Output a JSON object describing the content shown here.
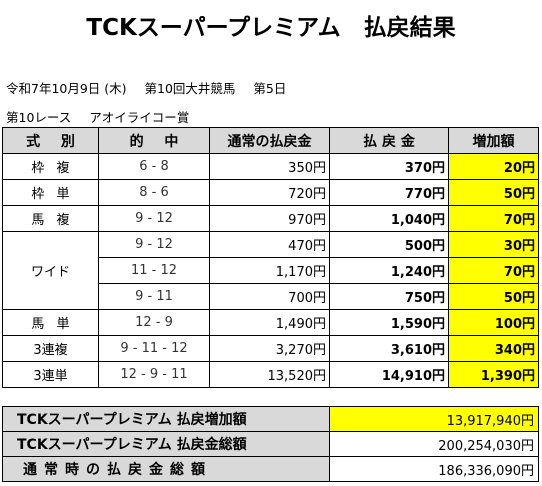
{
  "title": "TCKスーパープレミアム　払戻結果",
  "meta": {
    "date": "令和7年10月9日 (木)",
    "meeting": "第10回大井競馬",
    "day": "第5日",
    "race": "第10レース",
    "race_name": "アオイライコー賞"
  },
  "headers": [
    "式 別",
    "的 中",
    "通常の払戻金",
    "払 戻 金",
    "増加額"
  ],
  "rows": [
    {
      "bet": "枠 複",
      "comb": "6 - 8",
      "normal": "350円",
      "payout": "370円",
      "increase": "20円"
    },
    {
      "bet": "枠 単",
      "comb": "8 - 6",
      "normal": "720円",
      "payout": "770円",
      "increase": "50円"
    },
    {
      "bet": "馬 複",
      "comb": "9 - 12",
      "normal": "970円",
      "payout": "1,040円",
      "increase": "70円"
    },
    {
      "bet": "ワイド",
      "comb": "9 - 12",
      "normal": "470円",
      "payout": "500円",
      "increase": "30円"
    },
    {
      "bet": "",
      "comb": "11 - 12",
      "normal": "1,170円",
      "payout": "1,240円",
      "increase": "70円"
    },
    {
      "bet": "",
      "comb": "9 - 11",
      "normal": "700円",
      "payout": "750円",
      "increase": "50円"
    },
    {
      "bet": "馬 単",
      "comb": "12 - 9",
      "normal": "1,490円",
      "payout": "1,590円",
      "increase": "100円"
    },
    {
      "bet": "3連複",
      "comb": "9 - 11 - 12",
      "normal": "3,270円",
      "payout": "3,610円",
      "increase": "340円"
    },
    {
      "bet": "3連単",
      "comb": "12 - 9 - 11",
      "normal": "13,520円",
      "payout": "14,910円",
      "increase": "1,390円"
    }
  ],
  "summary": [
    {
      "label": "TCKスーパープレミアム 払戻増加額",
      "value": "13,917,940円"
    },
    {
      "label": "TCKスーパープレミアム 払戻金総額",
      "value": "200,254,030円"
    },
    {
      "label": "通常時の払戻金総額",
      "value": "186,336,090円"
    }
  ],
  "colors": {
    "header_bg": "#d9d9d9",
    "highlight": "#ffff00"
  }
}
